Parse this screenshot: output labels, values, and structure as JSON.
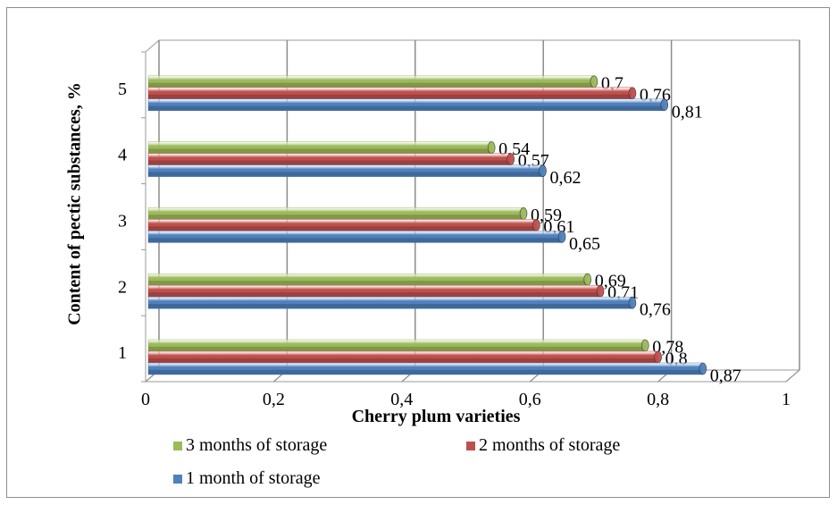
{
  "chart_data": {
    "type": "bar",
    "orientation": "horizontal",
    "style": "3d-cylinder",
    "categories": [
      "1",
      "2",
      "3",
      "4",
      "5"
    ],
    "series": [
      {
        "name": "3 months of storage",
        "color": "#9bbb59",
        "values": [
          0.78,
          0.69,
          0.59,
          0.54,
          0.7
        ]
      },
      {
        "name": "2 months of storage",
        "color": "#c0504d",
        "values": [
          0.8,
          0.71,
          0.61,
          0.57,
          0.76
        ]
      },
      {
        "name": "1 month of storage",
        "color": "#4f81bd",
        "values": [
          0.87,
          0.76,
          0.65,
          0.62,
          0.81
        ]
      }
    ],
    "data_labels": {
      "3 months of storage": [
        "0,78",
        "0,69",
        "0,59",
        "0,54",
        "0,7"
      ],
      "2 months of storage": [
        "0,8",
        "0,71",
        "0,61",
        "0,57",
        "0,76"
      ],
      "1 month of storage": [
        "0,87",
        "0,76",
        "0,65",
        "0,62",
        "0,81"
      ]
    },
    "xlim": [
      0,
      1
    ],
    "x_ticks": [
      "0",
      "0,2",
      "0,4",
      "0,6",
      "0,8",
      "1"
    ],
    "xlabel": "Cherry plum varieties",
    "ylabel": "Content of pectic substances, %",
    "grid": true,
    "legend_position": "bottom"
  }
}
